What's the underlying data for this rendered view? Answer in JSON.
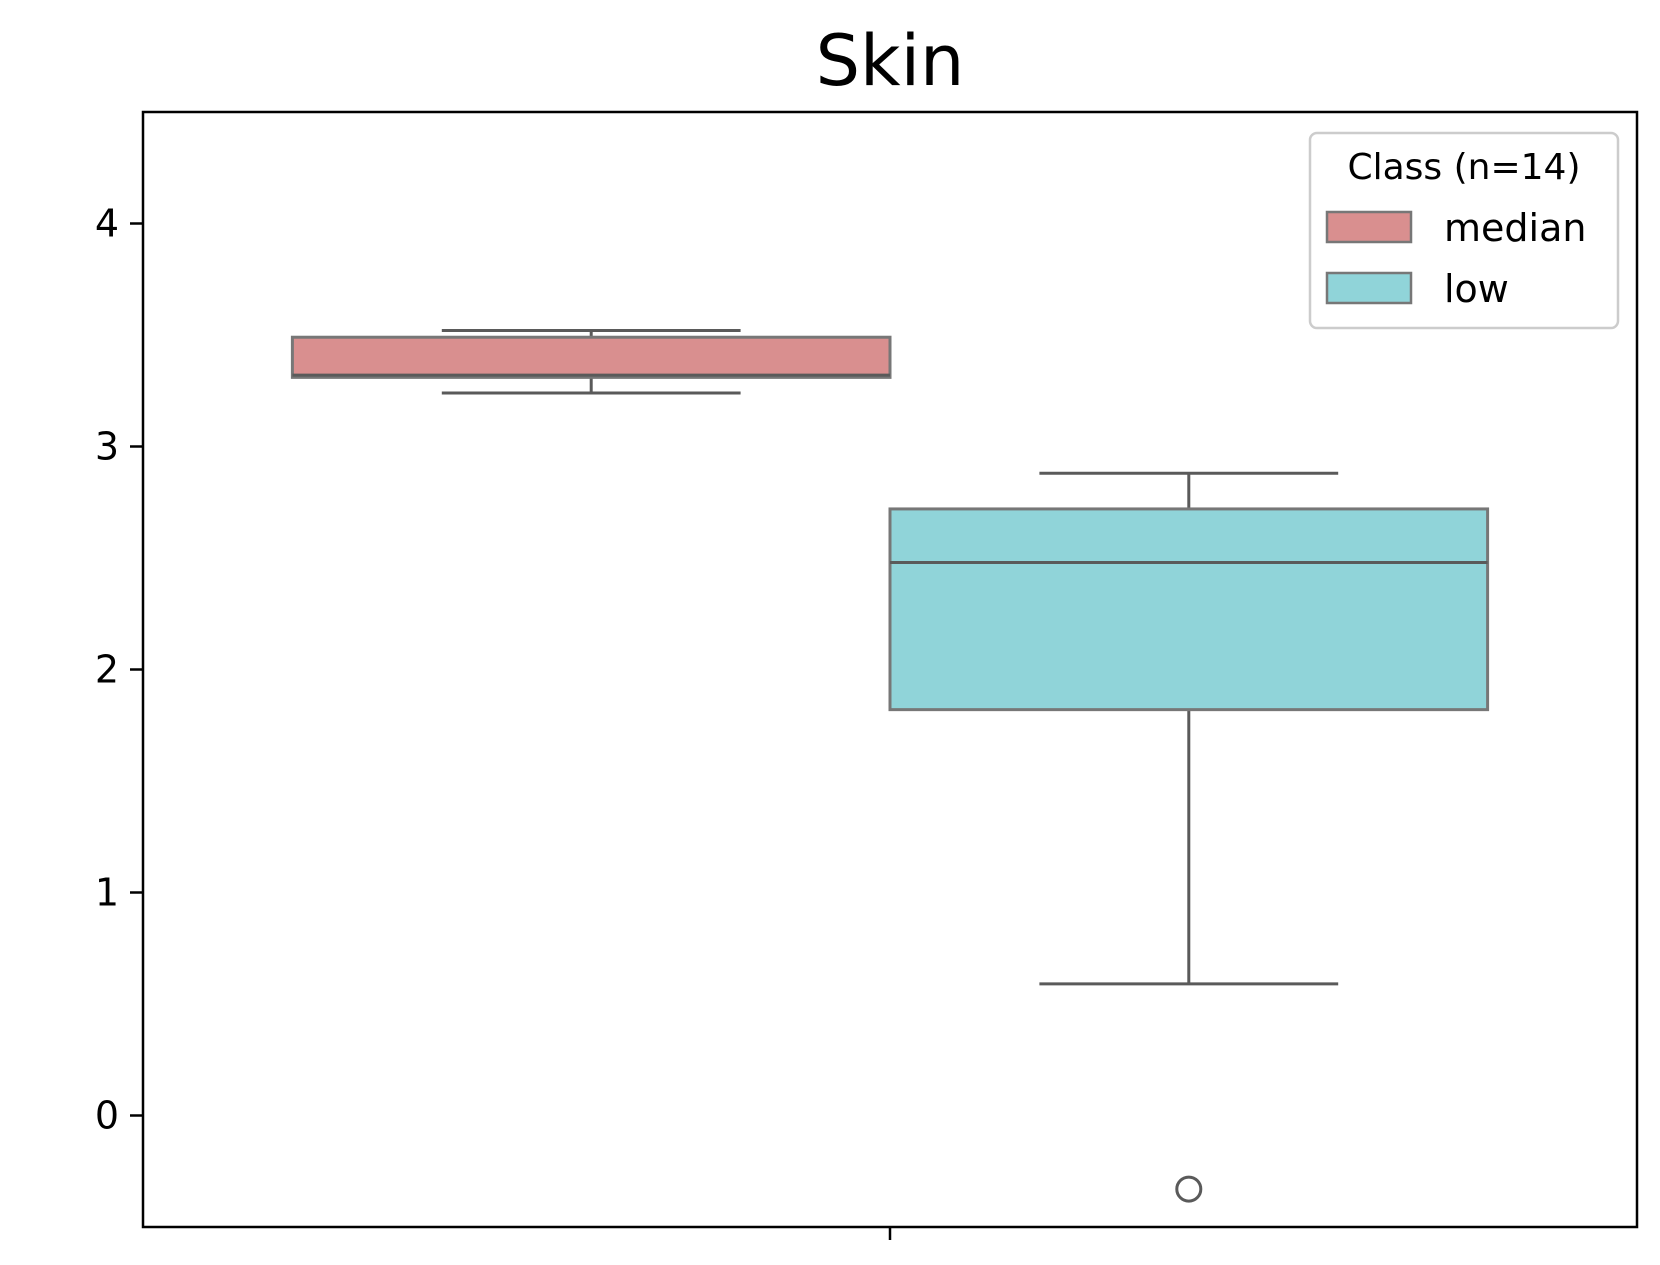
{
  "chart_data": {
    "type": "box",
    "title": "Skin",
    "xlabel": "",
    "ylabel": "",
    "ylim": [
      -0.5,
      4.5
    ],
    "yticks": [
      0,
      1,
      2,
      3,
      4
    ],
    "x_ticks": 1,
    "grid": false,
    "legend": {
      "title": "Class (n=14)",
      "placement": "top-right",
      "entries": [
        "median",
        "low"
      ]
    },
    "series": [
      {
        "name": "median",
        "color": "#d98f8f",
        "whisker_low": 3.24,
        "q1": 3.31,
        "median": 3.32,
        "q3": 3.49,
        "whisker_high": 3.52,
        "outliers": []
      },
      {
        "name": "low",
        "color": "#90d4d9",
        "whisker_low": 0.59,
        "q1": 1.82,
        "median": 2.48,
        "q3": 2.72,
        "whisker_high": 2.88,
        "outliers": [
          -0.33
        ]
      }
    ],
    "edge_color": "#5a5a5a"
  }
}
